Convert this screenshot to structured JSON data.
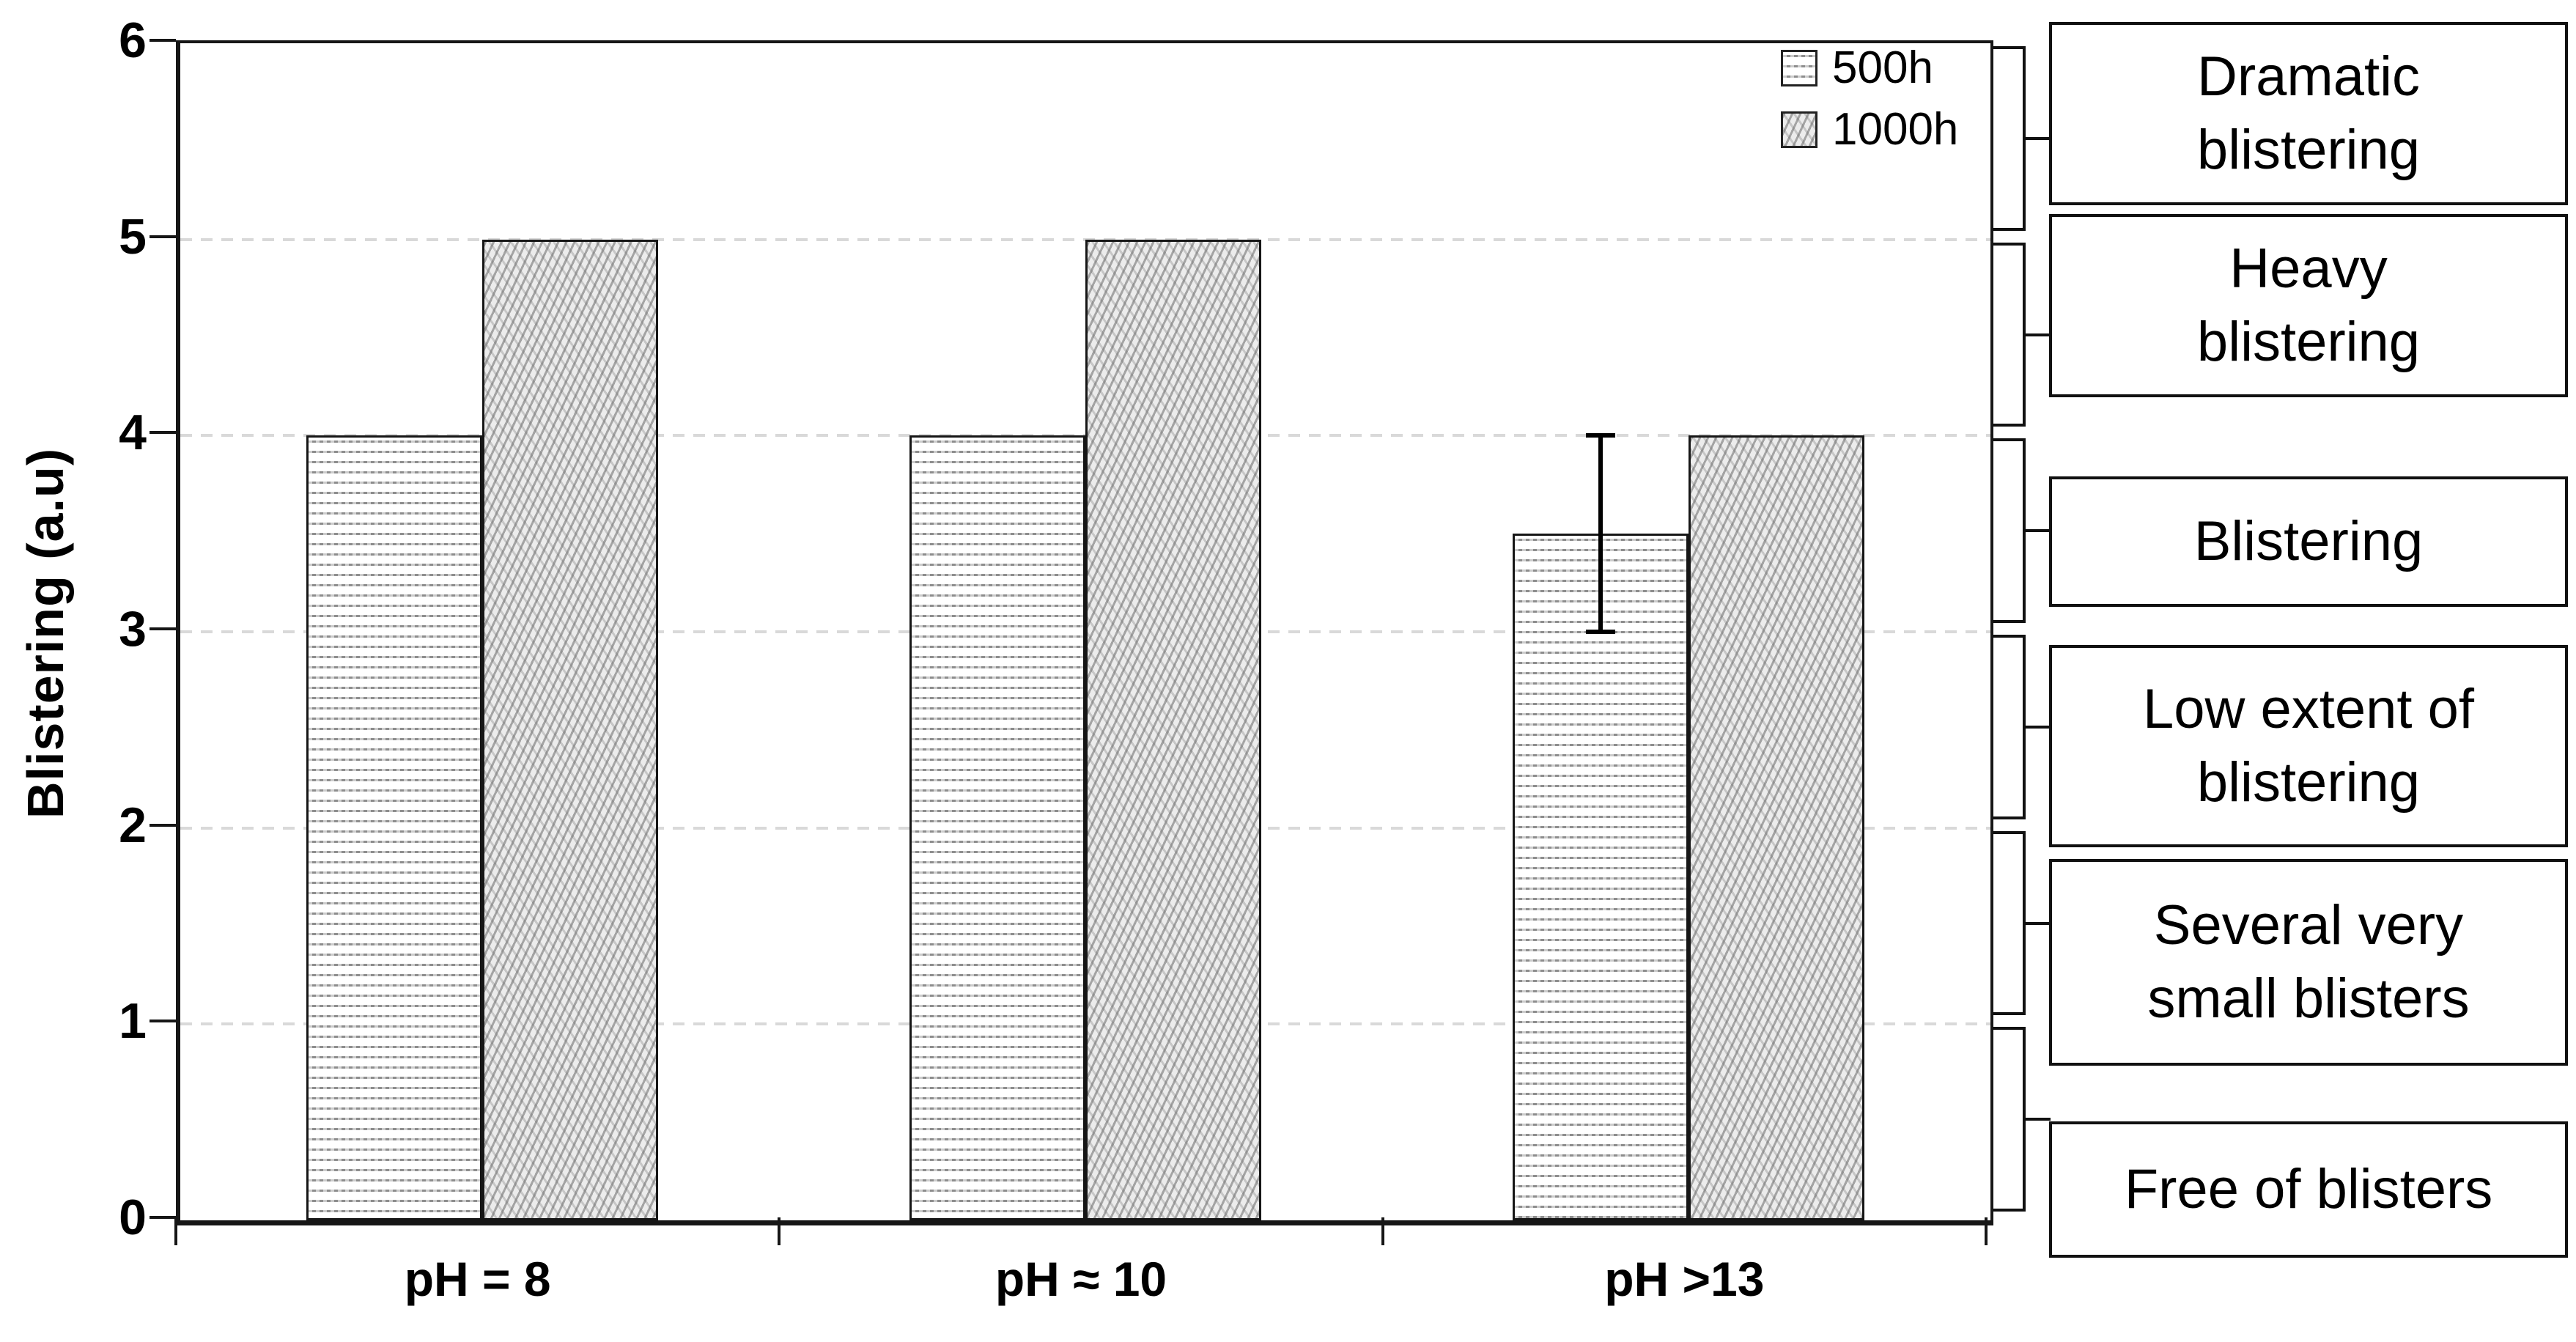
{
  "chart_data": {
    "type": "bar",
    "title": "",
    "xlabel": "",
    "ylabel": "Blistering (a.u)",
    "ylim": [
      0,
      6
    ],
    "yticks": [
      "0",
      "1",
      "2",
      "3",
      "4",
      "5",
      "6"
    ],
    "grid": "horizontal dashed gridlines at integer values 1-5",
    "legend_position": "top-right-inside",
    "categories": [
      "pH = 8",
      "pH ≈ 10",
      "pH >13"
    ],
    "series": [
      {
        "name": "500h",
        "pattern": "horizontal-wave-hatch",
        "values": [
          4,
          4,
          3.5
        ]
      },
      {
        "name": "1000h",
        "pattern": "diagonal-hatch",
        "values": [
          5,
          5,
          4
        ]
      }
    ],
    "error_bars": [
      {
        "series": "500h",
        "category": "pH >13",
        "center": 3.5,
        "low": 3,
        "high": 4
      }
    ],
    "right_scale_note": "six bracketed bands (one per y unit, 0-6) map to severity boxes"
  },
  "y_axis": {
    "title": "Blistering (a.u)"
  },
  "legend": {
    "items": [
      {
        "label": "500h"
      },
      {
        "label": "1000h"
      }
    ]
  },
  "severity_scale": {
    "boxes": [
      {
        "label": "Dramatic\nblistering"
      },
      {
        "label": "Heavy\nblistering"
      },
      {
        "label": "Blistering"
      },
      {
        "label": "Low extent of\nblistering"
      },
      {
        "label": "Several very\nsmall blisters"
      },
      {
        "label": "Free of blisters"
      }
    ]
  },
  "colors": {
    "axis": "#161616",
    "gridline": "#d9d9d9",
    "hatch_dark": "#8d8d8d",
    "bar1000_bg": "#ececec",
    "box_border": "#111111",
    "background": "#ffffff"
  }
}
